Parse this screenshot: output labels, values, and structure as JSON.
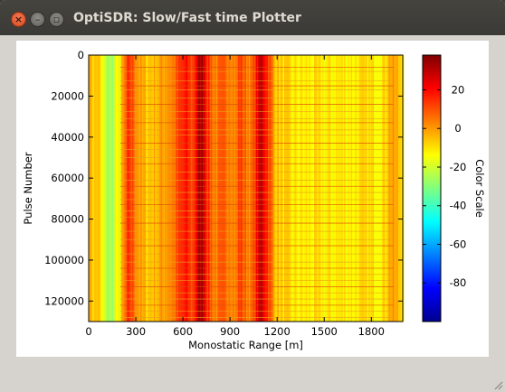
{
  "window": {
    "title": "OptiSDR: Slow/Fast time Plotter",
    "close_glyph": "×",
    "minimize_glyph": "–",
    "maximize_glyph": "▫"
  },
  "chart_data": {
    "type": "heatmap",
    "xlabel": "Monostatic Range [m]",
    "ylabel": "Pulse Number",
    "colorbar_label": "Color Scale",
    "xlim": [
      0,
      2000
    ],
    "ylim": [
      130000,
      0
    ],
    "x_ticks": [
      0,
      300,
      600,
      900,
      1200,
      1500,
      1800
    ],
    "x_tick_labels": [
      "0",
      "300",
      "600",
      "900",
      "1200",
      "1500",
      "1800"
    ],
    "y_ticks": [
      0,
      20000,
      40000,
      60000,
      80000,
      100000,
      120000
    ],
    "y_tick_labels": [
      "0",
      "20000",
      "40000",
      "60000",
      "80000",
      "100000",
      "120000"
    ],
    "colorbar_range": [
      -100,
      38
    ],
    "colorbar_ticks": [
      20,
      0,
      -20,
      -40,
      -60,
      -80
    ],
    "colorbar_tick_labels": [
      "20",
      "0",
      "-20",
      "-40",
      "-60",
      "-80"
    ],
    "colormap": "jet",
    "range_profile": {
      "x": [
        0,
        40,
        60,
        80,
        100,
        130,
        160,
        200,
        240,
        260,
        300,
        340,
        380,
        420,
        460,
        500,
        540,
        580,
        620,
        660,
        700,
        720,
        740,
        760,
        800,
        860,
        900,
        940,
        960,
        1000,
        1040,
        1060,
        1080,
        1100,
        1140,
        1180,
        1220,
        1300,
        1400,
        1500,
        1600,
        1700,
        1800,
        1880,
        1920,
        1980,
        2000
      ],
      "value": [
        -2,
        -8,
        -4,
        -14,
        -20,
        -28,
        -22,
        -12,
        8,
        14,
        4,
        -4,
        -6,
        -4,
        -2,
        2,
        4,
        12,
        18,
        10,
        30,
        34,
        26,
        14,
        4,
        6,
        8,
        2,
        14,
        6,
        4,
        14,
        24,
        30,
        16,
        -2,
        -8,
        -12,
        -12,
        -12,
        -11,
        -11,
        -11,
        -10,
        0,
        -6,
        -8
      ]
    },
    "stripe_pulses": [
      6000,
      8000,
      12500,
      15000,
      17000,
      21000,
      24000,
      27500,
      31000,
      33000,
      36500,
      39000,
      43000,
      46000,
      50000,
      53000,
      57000,
      61000,
      64000,
      67000,
      70500,
      73000,
      76000,
      79000,
      82000,
      86000,
      90000,
      93000,
      97000,
      101000,
      104000,
      107000,
      110000,
      113000,
      116000,
      119000,
      122000,
      125000,
      128000
    ]
  }
}
